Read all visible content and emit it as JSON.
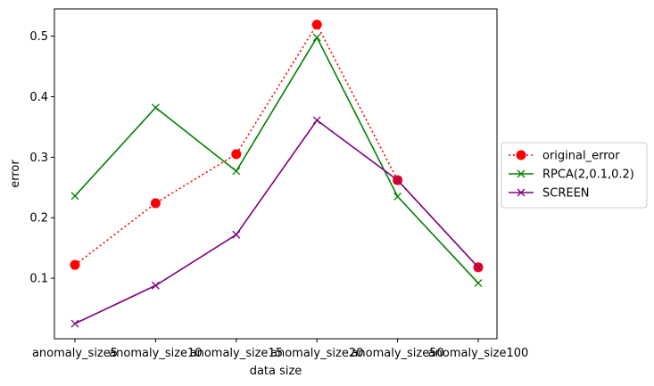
{
  "chart_data": {
    "type": "line",
    "categories": [
      "anomaly_size5",
      "anomaly_size10",
      "anomaly_size15",
      "anomaly_size20",
      "anomaly_size50",
      "anomaly_size100"
    ],
    "xlabel": "data size",
    "ylabel": "error",
    "ylim": [
      0.0,
      0.545
    ],
    "yticks": [
      0.1,
      0.2,
      0.3,
      0.4,
      0.5
    ],
    "ytick_labels": [
      "0.1",
      "0.2",
      "0.3",
      "0.4",
      "0.5"
    ],
    "grid": false,
    "legend_position": "right, outside plot",
    "series": [
      {
        "name": "original_error",
        "values": [
          0.122,
          0.224,
          0.305,
          0.519,
          0.262,
          0.118
        ],
        "color": "#ff0000",
        "line_style": "dotted",
        "marker": "circle"
      },
      {
        "name": "RPCA(2,0.1,0.2)",
        "values": [
          0.236,
          0.382,
          0.277,
          0.498,
          0.235,
          0.092
        ],
        "color": "#008000",
        "line_style": "solid",
        "marker": "x"
      },
      {
        "name": "SCREEN",
        "values": [
          0.025,
          0.088,
          0.172,
          0.361,
          0.262,
          0.118
        ],
        "color": "#800080",
        "line_style": "solid",
        "marker": "x"
      }
    ]
  }
}
